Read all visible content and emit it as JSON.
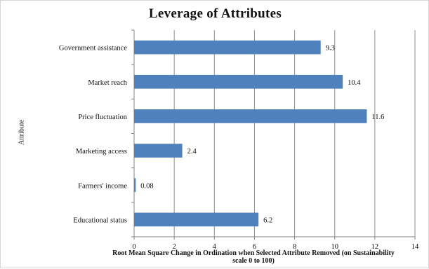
{
  "chart_data": {
    "type": "bar",
    "orientation": "horizontal",
    "title": "Leverage  of Attributes",
    "xlabel": "Root Mean Square Change in Ordination when Selected Attribute Removed (on Sustainability scale 0 to 100)",
    "ylabel": "Attribute",
    "categories": [
      "Government assistance",
      "Market reach",
      "Price fluctuation",
      "Marketing access",
      "Farmers' income",
      "Educational status"
    ],
    "values": [
      9.3,
      10.4,
      11.6,
      2.4,
      0.08,
      6.2
    ],
    "value_labels": [
      "9.3",
      "10.4",
      "11.6",
      "2.4",
      "0.08",
      "6.2"
    ],
    "xlim": [
      0,
      14
    ],
    "xticks": [
      0,
      2,
      4,
      6,
      8,
      10,
      12,
      14
    ],
    "grid": true,
    "legend": "none",
    "bar_color": "#4f81bd",
    "grid_color": "#8c8c8c"
  }
}
